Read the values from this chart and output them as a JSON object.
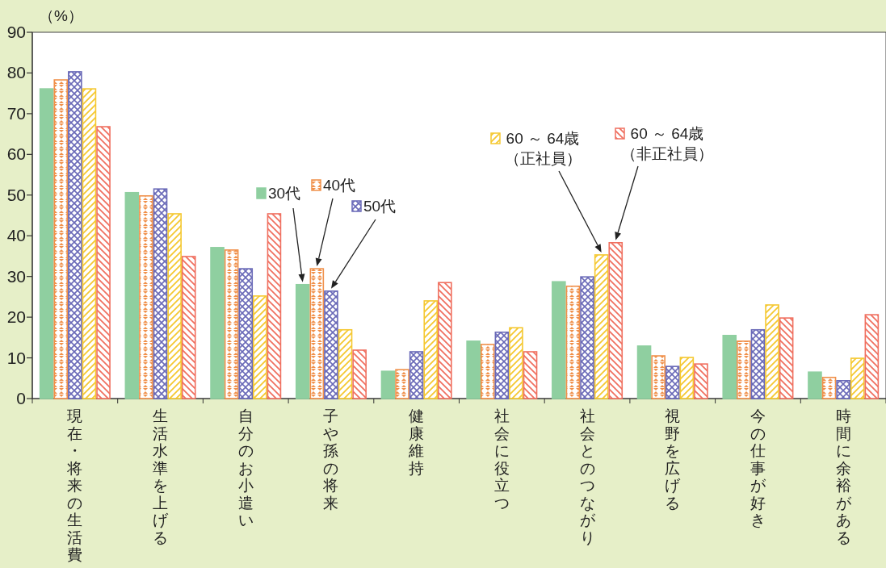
{
  "chart_data": {
    "type": "bar",
    "ylabel": "（%）",
    "categories": [
      "現在・将来の生活費",
      "生活水準を上げる",
      "自分のお小遣い",
      "子や孫の将来",
      "健康維持",
      "社会に役立つ",
      "社会とのつながり",
      "視野を広げる",
      "今の仕事が好き",
      "時間に余裕がある"
    ],
    "series": [
      {
        "name": "30代",
        "color": "#8fcfa0",
        "values": [
          76.1,
          50.6,
          37.1,
          28,
          6.7,
          14.1,
          28.7,
          12.9,
          15.5,
          6.5
        ]
      },
      {
        "name": "40代",
        "color": "#f0904a",
        "values": [
          78.3,
          49.8,
          36.5,
          31.9,
          7.1,
          13.3,
          27.6,
          10.5,
          14.1,
          5.2
        ]
      },
      {
        "name": "50代",
        "color": "#6a6ab8",
        "values": [
          80.3,
          51.5,
          31.9,
          26.4,
          11.5,
          16.3,
          29.9,
          7.9,
          16.9,
          4.4
        ]
      },
      {
        "name": "60 ～ 64歳（正社員）",
        "color": "#f5c830",
        "values": [
          76.1,
          45.4,
          25.2,
          16.9,
          24,
          17.4,
          35.3,
          10.1,
          23,
          9.9
        ]
      },
      {
        "name": "60 ～ 64歳（非正社員）",
        "color": "#f07060",
        "values": [
          66.8,
          34.9,
          45.4,
          11.9,
          28.5,
          11.5,
          38.3,
          8.5,
          19.8,
          20.6
        ]
      }
    ],
    "ylim": [
      0,
      90
    ],
    "yticks": [
      0,
      10,
      20,
      30,
      40,
      50,
      60,
      70,
      80,
      90
    ],
    "grid": false,
    "legend": "top"
  }
}
